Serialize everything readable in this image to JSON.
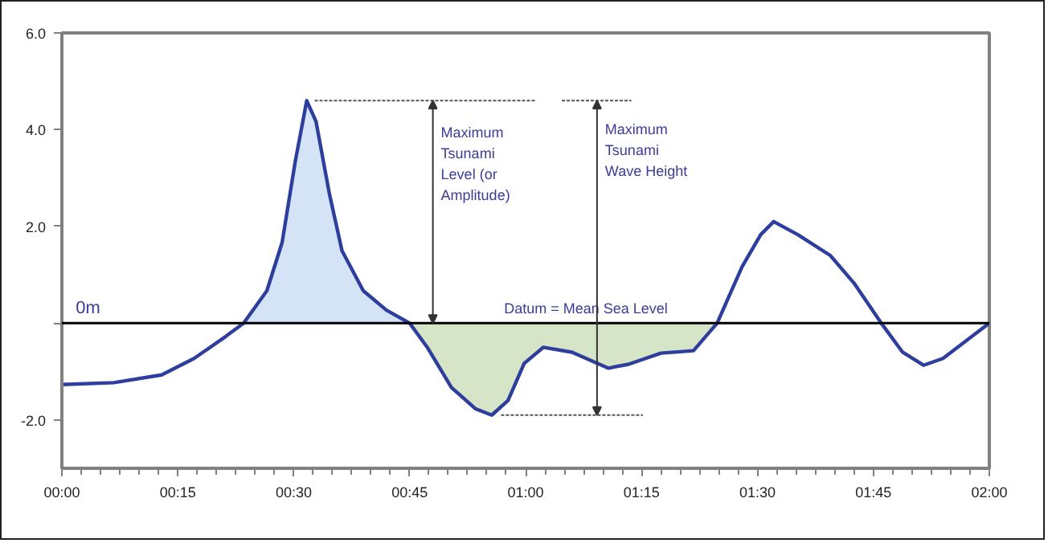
{
  "chart_data": {
    "type": "line",
    "x": [
      0,
      0.112,
      0.215,
      0.285,
      0.354,
      0.392,
      0.442,
      0.475,
      0.503,
      0.528,
      0.548,
      0.577,
      0.604,
      0.65,
      0.7,
      0.75,
      0.788,
      0.84,
      0.892,
      0.927,
      0.962,
      0.997,
      1.038,
      1.1,
      1.178,
      1.222,
      1.292,
      1.362,
      1.413,
      1.467,
      1.507,
      1.535,
      1.587,
      1.657,
      1.708,
      1.767,
      1.813,
      1.858,
      1.9,
      2.0
    ],
    "series": [
      {
        "type": "area",
        "color": "#d4e3f6",
        "x": [
          0.392,
          0.442,
          0.475,
          0.503,
          0.528,
          0.548,
          0.577,
          0.604,
          0.65,
          0.7,
          0.75
        ],
        "values": [
          0,
          0.67,
          1.67,
          3.33,
          4.6,
          4.17,
          2.67,
          1.5,
          0.67,
          0.27,
          0
        ]
      },
      {
        "type": "area",
        "color": "#d6e4c8",
        "x": [
          0.75,
          0.788,
          0.84,
          0.892,
          0.927,
          0.962,
          0.997,
          1.038,
          1.1,
          1.178,
          1.222,
          1.292,
          1.362,
          1.413
        ],
        "values": [
          0,
          -0.5,
          -1.33,
          -1.77,
          -1.9,
          -1.6,
          -0.83,
          -0.5,
          -0.6,
          -0.93,
          -0.85,
          -0.62,
          -0.57,
          0
        ]
      },
      {
        "type": "line",
        "color": "#555555",
        "line_style": "dashed",
        "x": [
          0.545,
          1.02
        ],
        "values": [
          4.6,
          4.6
        ]
      },
      {
        "type": "line",
        "color": "#555555",
        "line_style": "dashed",
        "x": [
          1.078,
          1.228
        ],
        "values": [
          4.6,
          4.6
        ]
      },
      {
        "type": "line",
        "color": "#555555",
        "line_style": "dashed",
        "x": [
          0.947,
          1.253
        ],
        "values": [
          -1.9,
          -1.9
        ]
      },
      {
        "color": "#2e3e9c",
        "values": [
          -1.27,
          -1.23,
          -1.07,
          -0.73,
          -0.27,
          0,
          0.67,
          1.67,
          3.33,
          4.6,
          4.17,
          2.67,
          1.5,
          0.67,
          0.27,
          0,
          -0.5,
          -1.33,
          -1.77,
          -1.9,
          -1.6,
          -0.83,
          -0.5,
          -0.6,
          -0.93,
          -0.85,
          -0.62,
          -0.57,
          0,
          1.17,
          1.83,
          2.1,
          1.83,
          1.4,
          0.83,
          0,
          -0.6,
          -0.87,
          -0.73,
          0
        ]
      }
    ],
    "xlim": [
      0,
      2
    ],
    "ylim": [
      -3,
      6
    ],
    "xticks": [
      {
        "value": 0,
        "label": "00:00"
      },
      {
        "value": 0.25,
        "label": "00:15"
      },
      {
        "value": 0.5,
        "label": "00:30"
      },
      {
        "value": 0.75,
        "label": "00:45"
      },
      {
        "value": 1,
        "label": "01:00"
      },
      {
        "value": 1.25,
        "label": "01:15"
      },
      {
        "value": 1.5,
        "label": "01:30"
      },
      {
        "value": 1.75,
        "label": "01:45"
      },
      {
        "value": 2,
        "label": "02:00"
      }
    ],
    "yticks": [
      {
        "value": -2,
        "label": "-2.0"
      },
      {
        "value": 0,
        "label": null
      },
      {
        "value": 2,
        "label": "2.0"
      },
      {
        "value": 4,
        "label": "4.0"
      },
      {
        "value": 6,
        "label": "6.0"
      }
    ],
    "ref_lines": [
      {
        "axis": "y",
        "value": 0,
        "label": "Datum = Mean Sea Level",
        "color": "#000000"
      }
    ],
    "annotations": [
      {
        "text": "0m",
        "x": 0.03,
        "y": 0
      },
      "Maximum\nTsunami\nLevel (or\nAmplitude)",
      "Maximum\nTsunami\nWave Height"
    ],
    "grid": false,
    "marker": "none",
    "line_style": "solid"
  }
}
